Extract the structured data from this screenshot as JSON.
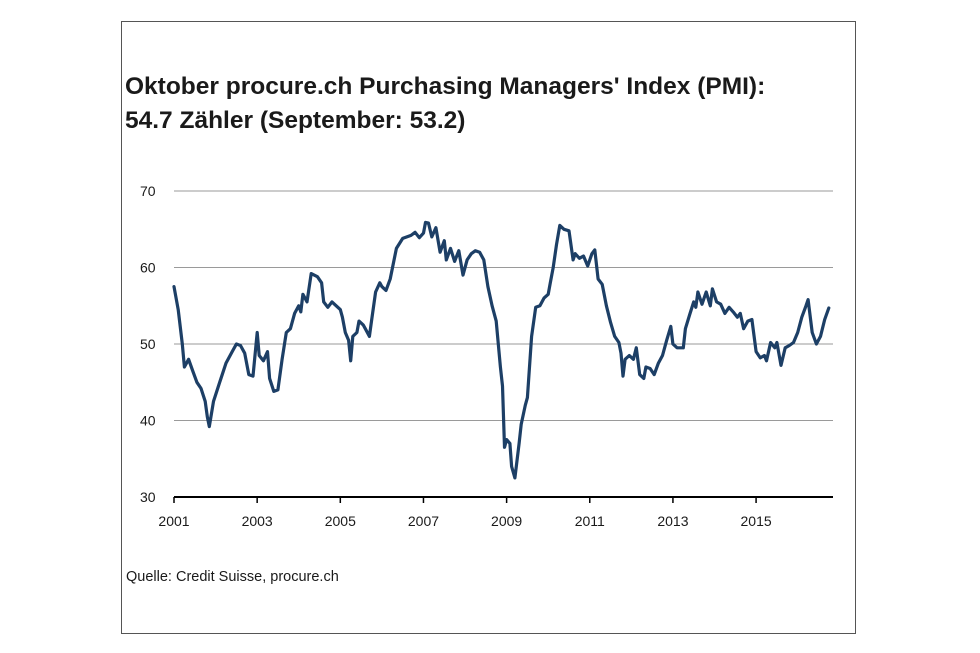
{
  "title_line1": "Oktober procure.ch Purchasing Managers' Index (PMI):",
  "title_line2": "54.7 Zähler (September: 53.2)",
  "source": "Quelle: Credit Suisse, procure.ch",
  "colors": {
    "line": "#1d3f66",
    "grid": "#9a9a9a",
    "axis": "#000000"
  },
  "chart_data": {
    "type": "line",
    "title": "Oktober procure.ch Purchasing Managers' Index (PMI): 54.7 Zähler (September: 53.2)",
    "xlabel": "",
    "ylabel": "",
    "xlim": [
      2001.0,
      2016.85
    ],
    "ylim": [
      30,
      70
    ],
    "yticks": [
      70,
      60,
      50,
      40,
      30
    ],
    "xticks": [
      "2001",
      "2003",
      "2005",
      "2007",
      "2009",
      "2011",
      "2013",
      "2015"
    ],
    "grid": true,
    "series": [
      {
        "values": [
          [
            2001.0,
            57.5
          ],
          [
            2001.1,
            54.5
          ],
          [
            2001.2,
            50.0
          ],
          [
            2001.25,
            47.0
          ],
          [
            2001.35,
            48.0
          ],
          [
            2001.45,
            46.5
          ],
          [
            2001.55,
            45.0
          ],
          [
            2001.65,
            44.2
          ],
          [
            2001.75,
            42.5
          ],
          [
            2001.8,
            40.5
          ],
          [
            2001.85,
            39.2
          ],
          [
            2001.95,
            42.5
          ],
          [
            2002.1,
            45.0
          ],
          [
            2002.25,
            47.5
          ],
          [
            2002.4,
            49.0
          ],
          [
            2002.5,
            50.0
          ],
          [
            2002.6,
            49.8
          ],
          [
            2002.7,
            48.8
          ],
          [
            2002.8,
            46.0
          ],
          [
            2002.9,
            45.8
          ],
          [
            2003.0,
            51.5
          ],
          [
            2003.05,
            48.5
          ],
          [
            2003.15,
            47.8
          ],
          [
            2003.25,
            49.0
          ],
          [
            2003.3,
            45.5
          ],
          [
            2003.4,
            43.8
          ],
          [
            2003.5,
            44.0
          ],
          [
            2003.6,
            48.0
          ],
          [
            2003.7,
            51.5
          ],
          [
            2003.8,
            52.0
          ],
          [
            2003.9,
            54.0
          ],
          [
            2004.0,
            55.0
          ],
          [
            2004.05,
            54.2
          ],
          [
            2004.1,
            56.5
          ],
          [
            2004.2,
            55.5
          ],
          [
            2004.3,
            59.2
          ],
          [
            2004.45,
            58.8
          ],
          [
            2004.55,
            58.0
          ],
          [
            2004.6,
            55.5
          ],
          [
            2004.7,
            54.8
          ],
          [
            2004.8,
            55.5
          ],
          [
            2004.9,
            55.0
          ],
          [
            2005.0,
            54.5
          ],
          [
            2005.05,
            53.5
          ],
          [
            2005.12,
            51.5
          ],
          [
            2005.2,
            50.5
          ],
          [
            2005.25,
            47.8
          ],
          [
            2005.3,
            51.0
          ],
          [
            2005.4,
            51.5
          ],
          [
            2005.45,
            53.0
          ],
          [
            2005.55,
            52.5
          ],
          [
            2005.6,
            52.0
          ],
          [
            2005.7,
            51.0
          ],
          [
            2005.75,
            53.0
          ],
          [
            2005.85,
            56.8
          ],
          [
            2005.95,
            58.0
          ],
          [
            2006.0,
            57.5
          ],
          [
            2006.1,
            57.0
          ],
          [
            2006.2,
            58.5
          ],
          [
            2006.35,
            62.5
          ],
          [
            2006.5,
            63.8
          ],
          [
            2006.7,
            64.2
          ],
          [
            2006.8,
            64.6
          ],
          [
            2006.9,
            63.9
          ],
          [
            2007.0,
            64.5
          ],
          [
            2007.05,
            65.9
          ],
          [
            2007.12,
            65.8
          ],
          [
            2007.2,
            64.0
          ],
          [
            2007.3,
            65.2
          ],
          [
            2007.4,
            62.0
          ],
          [
            2007.5,
            63.5
          ],
          [
            2007.55,
            61.0
          ],
          [
            2007.65,
            62.5
          ],
          [
            2007.75,
            60.8
          ],
          [
            2007.85,
            62.2
          ],
          [
            2007.95,
            59.0
          ],
          [
            2008.05,
            61.0
          ],
          [
            2008.15,
            61.8
          ],
          [
            2008.25,
            62.2
          ],
          [
            2008.35,
            62.0
          ],
          [
            2008.45,
            61.0
          ],
          [
            2008.55,
            57.5
          ],
          [
            2008.65,
            55.0
          ],
          [
            2008.75,
            53.0
          ],
          [
            2008.85,
            47.0
          ],
          [
            2008.9,
            44.5
          ],
          [
            2008.95,
            36.5
          ],
          [
            2009.0,
            37.5
          ],
          [
            2009.08,
            37.0
          ],
          [
            2009.12,
            34.0
          ],
          [
            2009.2,
            32.5
          ],
          [
            2009.3,
            37.0
          ],
          [
            2009.35,
            39.5
          ],
          [
            2009.45,
            42.0
          ],
          [
            2009.5,
            43.0
          ],
          [
            2009.6,
            51.0
          ],
          [
            2009.7,
            54.8
          ],
          [
            2009.8,
            55.0
          ],
          [
            2009.9,
            56.0
          ],
          [
            2010.0,
            56.5
          ],
          [
            2010.05,
            58.0
          ],
          [
            2010.12,
            60.0
          ],
          [
            2010.2,
            63.0
          ],
          [
            2010.28,
            65.5
          ],
          [
            2010.38,
            65.0
          ],
          [
            2010.5,
            64.8
          ],
          [
            2010.6,
            61.0
          ],
          [
            2010.65,
            61.8
          ],
          [
            2010.75,
            61.2
          ],
          [
            2010.85,
            61.5
          ],
          [
            2010.95,
            60.2
          ],
          [
            2011.05,
            61.8
          ],
          [
            2011.12,
            62.3
          ],
          [
            2011.2,
            58.5
          ],
          [
            2011.3,
            57.8
          ],
          [
            2011.4,
            55.0
          ],
          [
            2011.5,
            52.8
          ],
          [
            2011.6,
            51.0
          ],
          [
            2011.7,
            50.2
          ],
          [
            2011.75,
            48.8
          ],
          [
            2011.8,
            45.8
          ],
          [
            2011.85,
            48.0
          ],
          [
            2011.95,
            48.5
          ],
          [
            2012.05,
            48.0
          ],
          [
            2012.12,
            49.5
          ],
          [
            2012.2,
            46.0
          ],
          [
            2012.3,
            45.5
          ],
          [
            2012.35,
            47.0
          ],
          [
            2012.45,
            46.8
          ],
          [
            2012.55,
            46.0
          ],
          [
            2012.65,
            47.5
          ],
          [
            2012.75,
            48.5
          ],
          [
            2012.85,
            50.5
          ],
          [
            2012.95,
            52.3
          ],
          [
            2013.0,
            50.0
          ],
          [
            2013.1,
            49.5
          ],
          [
            2013.25,
            49.5
          ],
          [
            2013.3,
            52.0
          ],
          [
            2013.4,
            53.8
          ],
          [
            2013.5,
            55.5
          ],
          [
            2013.55,
            54.8
          ],
          [
            2013.6,
            56.8
          ],
          [
            2013.7,
            55.2
          ],
          [
            2013.8,
            56.8
          ],
          [
            2013.9,
            55.0
          ],
          [
            2013.95,
            57.2
          ],
          [
            2014.05,
            55.5
          ],
          [
            2014.15,
            55.2
          ],
          [
            2014.25,
            54.0
          ],
          [
            2014.35,
            54.8
          ],
          [
            2014.45,
            54.2
          ],
          [
            2014.55,
            53.5
          ],
          [
            2014.62,
            54.0
          ],
          [
            2014.7,
            52.0
          ],
          [
            2014.8,
            53.0
          ],
          [
            2014.9,
            53.2
          ],
          [
            2015.0,
            49.0
          ],
          [
            2015.1,
            48.2
          ],
          [
            2015.2,
            48.5
          ],
          [
            2015.25,
            47.8
          ],
          [
            2015.35,
            50.2
          ],
          [
            2015.45,
            49.5
          ],
          [
            2015.5,
            50.2
          ],
          [
            2015.6,
            47.2
          ],
          [
            2015.7,
            49.5
          ],
          [
            2015.8,
            49.8
          ],
          [
            2015.9,
            50.2
          ],
          [
            2016.0,
            51.5
          ],
          [
            2016.1,
            53.5
          ],
          [
            2016.2,
            55.0
          ],
          [
            2016.25,
            55.8
          ],
          [
            2016.35,
            51.5
          ],
          [
            2016.45,
            50.0
          ],
          [
            2016.55,
            51.0
          ],
          [
            2016.65,
            53.2
          ],
          [
            2016.75,
            54.7
          ]
        ]
      }
    ]
  }
}
